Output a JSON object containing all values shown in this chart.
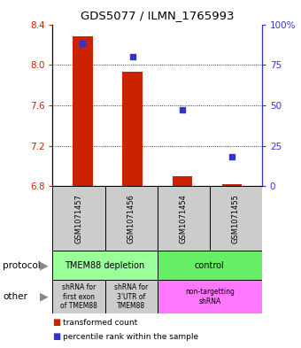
{
  "title": "GDS5077 / ILMN_1765993",
  "samples": [
    "GSM1071457",
    "GSM1071456",
    "GSM1071454",
    "GSM1071455"
  ],
  "bar_values": [
    8.28,
    7.93,
    6.9,
    6.82
  ],
  "bar_base": 6.8,
  "blue_values": [
    88,
    80,
    47,
    18
  ],
  "ylim": [
    6.8,
    8.4
  ],
  "yticks": [
    6.8,
    7.2,
    7.6,
    8.0,
    8.4
  ],
  "right_yticks": [
    0,
    25,
    50,
    75,
    100
  ],
  "bar_color": "#cc2200",
  "blue_color": "#3333cc",
  "legend_red": "transformed count",
  "legend_blue": "percentile rank within the sample",
  "protocol_arrow_label": "protocol",
  "other_arrow_label": "other",
  "protocol_groups": [
    [
      0,
      2,
      "TMEM88 depletion",
      "#99ff99"
    ],
    [
      2,
      4,
      "control",
      "#66ee66"
    ]
  ],
  "other_groups": [
    [
      0,
      1,
      "shRNA for\nfirst exon\nof TMEM88",
      "#cccccc"
    ],
    [
      1,
      2,
      "shRNA for\n3'UTR of\nTMEM88",
      "#cccccc"
    ],
    [
      2,
      4,
      "non-targetting\nshRNA",
      "#ff77ff"
    ]
  ],
  "sample_bg": "#cccccc",
  "bar_width": 0.4
}
